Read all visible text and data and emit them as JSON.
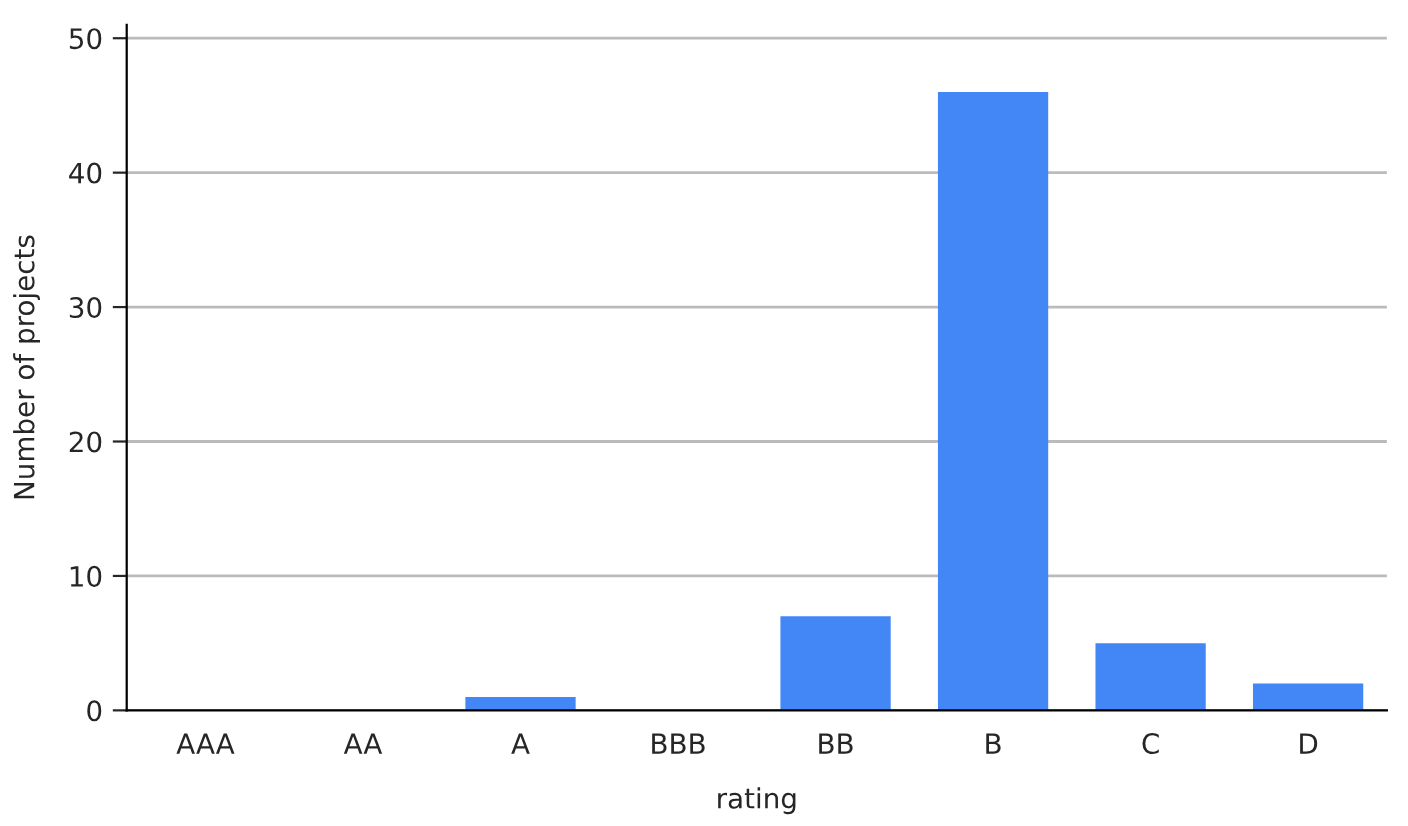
{
  "chart_data": {
    "type": "bar",
    "xlabel": "rating",
    "ylabel": "Number of projects",
    "categories": [
      "AAA",
      "AA",
      "A",
      "BBB",
      "BB",
      "B",
      "C",
      "D"
    ],
    "values": [
      0,
      0,
      1,
      0,
      7,
      46,
      5,
      2
    ],
    "color": "#4287f5",
    "ylim": [
      0,
      51
    ],
    "yticks": [
      0,
      10,
      20,
      30,
      40,
      50
    ],
    "grid": "y"
  }
}
